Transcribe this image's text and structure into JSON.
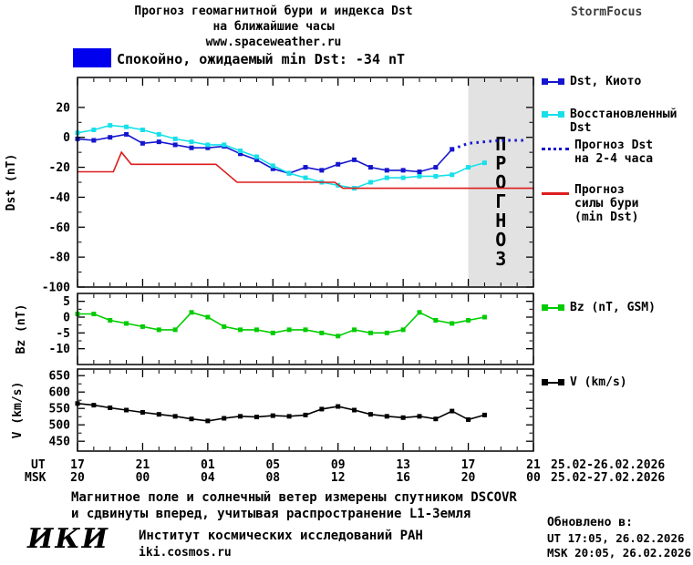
{
  "header": {
    "title_line1": "Прогноз геомагнитной бури и индекса Dst",
    "title_line2": "на ближайшие часы",
    "website": "www.spaceweather.ru",
    "brand": "StormFocus"
  },
  "status": {
    "text": "Спокойно, ожидаемый min Dst: -34 nT",
    "swatch_color": "#0000ee"
  },
  "axis": {
    "ut_label": "UT",
    "msk_label": "MSK",
    "ut_ticks": [
      "17",
      "21",
      "01",
      "05",
      "09",
      "13",
      "17",
      "21"
    ],
    "msk_ticks": [
      "20",
      "00",
      "04",
      "08",
      "12",
      "16",
      "20",
      "00"
    ],
    "ut_date_range": "25.02-26.02.2026",
    "msk_date_range": "25.02-27.02.2026"
  },
  "footer": {
    "note_line1": "Магнитное поле и солнечный ветер измерены спутником DSCOVR",
    "note_line2": "и сдвинуты вперед, учитывая распространение L1-Земля",
    "logo_text": "ИКИ",
    "institute": "Институт космических исследований РАН",
    "institute_site": "iki.cosmos.ru",
    "updated_label": "Обновлено в:",
    "updated_ut": "UT  17:05, 26.02.2026",
    "updated_msk": "MSK 20:05, 26.02.2026"
  },
  "chart_data": [
    {
      "type": "line",
      "ylabel": "Dst (nT)",
      "ylim": [
        -100,
        40
      ],
      "yticks": [
        20,
        0,
        -20,
        -40,
        -60,
        -80,
        -100
      ],
      "xlim": [
        0,
        28
      ],
      "xticks": [
        0,
        4,
        8,
        12,
        16,
        20,
        24,
        28
      ],
      "forecast_region": {
        "x0": 24,
        "x1": 28,
        "label": "ПРОГНОЗ"
      },
      "series": [
        {
          "name": "Dst, Киото",
          "color": "#1515cf",
          "marker": "square",
          "line": "solid",
          "y": [
            -1,
            -2,
            0,
            2,
            -4,
            -3,
            -5,
            -7,
            -7,
            -6,
            -11,
            -15,
            -21,
            -24,
            -20,
            -22,
            -18,
            -15,
            -20,
            -22,
            -22,
            -23,
            -20,
            -8
          ]
        },
        {
          "name": "Восстановленный Dst",
          "color": "#17e0ea",
          "marker": "square",
          "line": "solid",
          "y": [
            3,
            5,
            8,
            7,
            5,
            2,
            -1,
            -3,
            -5,
            -5,
            -9,
            -13,
            -19,
            -24,
            -27,
            -30,
            -32,
            -34,
            -30,
            -27,
            -27,
            -26,
            -26,
            -25,
            -20,
            -17
          ]
        },
        {
          "name": "Прогноз Dst на 2-4 часа",
          "color": "#1515cf",
          "marker": "none",
          "line": "dotted",
          "x": [
            23,
            24,
            25,
            26,
            27,
            27.6
          ],
          "y": [
            -8,
            -4,
            -3,
            -2,
            -2,
            -2
          ]
        },
        {
          "name": "Прогноз силы бури (min Dst)",
          "color": "#dd1c1c",
          "marker": "none",
          "line": "solid",
          "x": [
            0,
            2.2,
            2.7,
            3.3,
            8.5,
            9.8,
            15.8,
            16.3,
            28
          ],
          "y": [
            -23,
            -23,
            -10,
            -18,
            -18,
            -30,
            -30,
            -34,
            -34
          ]
        }
      ]
    },
    {
      "type": "line",
      "ylabel": "Bz (nT)",
      "ylim": [
        -15,
        7.5
      ],
      "yticks": [
        5,
        0,
        -5,
        -10
      ],
      "xlim": [
        0,
        28
      ],
      "xticks": [
        0,
        4,
        8,
        12,
        16,
        20,
        24,
        28
      ],
      "series": [
        {
          "name": "Bz (nT, GSM)",
          "color": "#00cc00",
          "marker": "square",
          "line": "solid",
          "y": [
            1,
            1,
            -1,
            -2,
            -3,
            -4,
            -4,
            1.5,
            0,
            -3,
            -4,
            -4,
            -5,
            -4,
            -4,
            -5,
            -6,
            -4,
            -5,
            -5,
            -4,
            1.5,
            -1,
            -2,
            -1,
            0
          ]
        }
      ]
    },
    {
      "type": "line",
      "ylabel": "V (km/s)",
      "ylim": [
        420,
        670
      ],
      "yticks": [
        650,
        600,
        550,
        500,
        450
      ],
      "xlim": [
        0,
        28
      ],
      "xticks": [
        0,
        4,
        8,
        12,
        16,
        20,
        24,
        28
      ],
      "series": [
        {
          "name": "V (km/s)",
          "color": "#000000",
          "marker": "square",
          "line": "solid",
          "y": [
            565,
            560,
            552,
            545,
            538,
            532,
            526,
            518,
            512,
            520,
            526,
            524,
            528,
            526,
            530,
            548,
            556,
            545,
            532,
            526,
            522,
            526,
            518,
            542,
            516,
            530
          ]
        }
      ]
    }
  ]
}
